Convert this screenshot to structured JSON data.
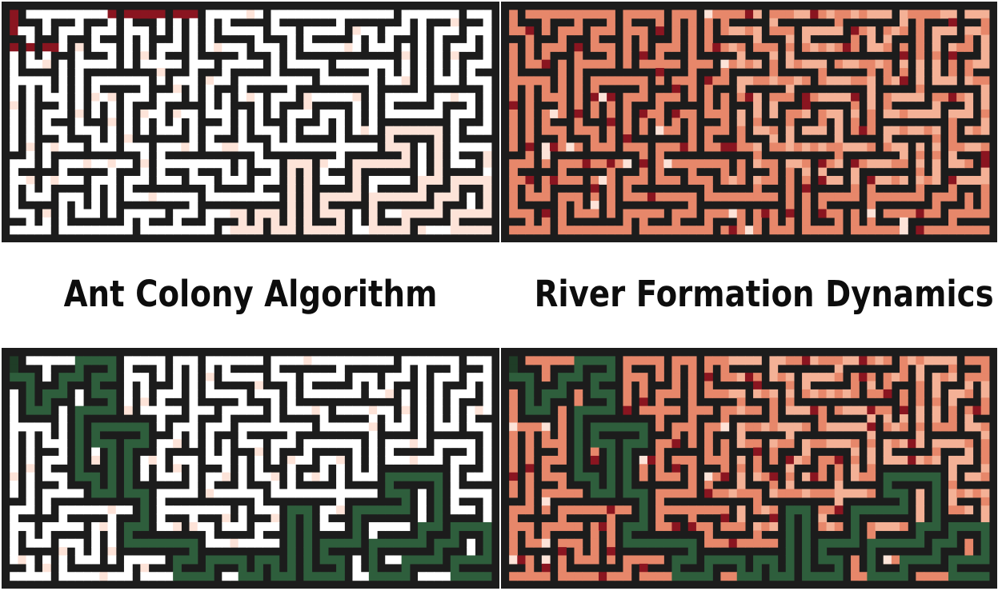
{
  "figure": {
    "left_caption": "Ant Colony Algorithm",
    "right_caption": "River Formation Dynamics"
  },
  "colors": {
    "wall": "#1c1c1c",
    "aco_corridor": "#ffffff",
    "rfd_corridor": "#e7876a",
    "trail_light": "#fde3d8",
    "trail_mid": "#f4b196",
    "trail_dark": "#8a1520",
    "solution_path": "#2e5e3c",
    "solution_path_dark": "#1f3d27"
  },
  "panels": [
    {
      "id": "aco-pheromone",
      "method": "ant-colony",
      "style": "pheromone-map",
      "solution_path_shown": false
    },
    {
      "id": "rfd-altitude",
      "method": "river-formation",
      "style": "altitude-map",
      "solution_path_shown": false
    },
    {
      "id": "aco-solution",
      "method": "ant-colony",
      "style": "pheromone-map",
      "solution_path_shown": true
    },
    {
      "id": "rfd-solution",
      "method": "river-formation",
      "style": "altitude-map",
      "solution_path_shown": true
    }
  ]
}
